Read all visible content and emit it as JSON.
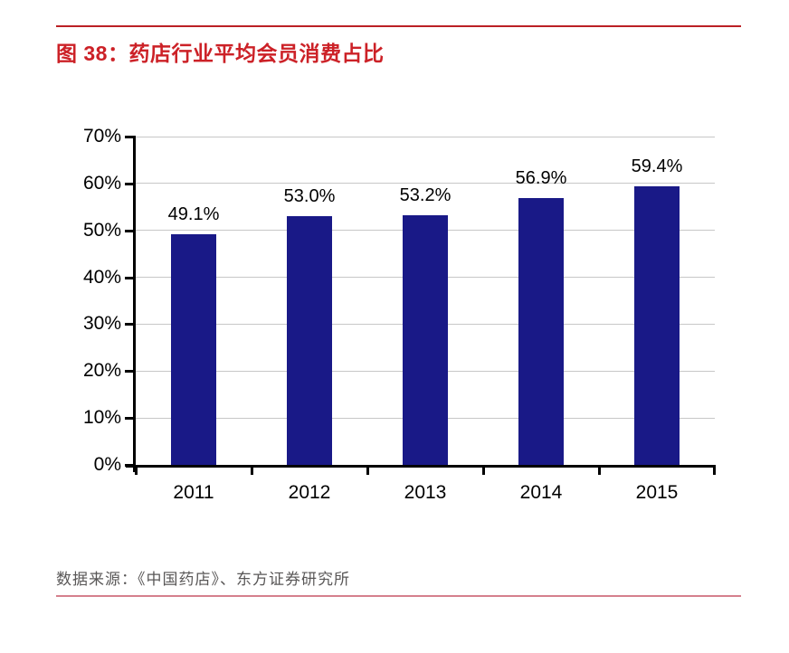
{
  "figure": {
    "number_and_title": "图 38：药店行业平均会员消费占比",
    "source_note": "数据来源：《中国药店》、东方证券研究所"
  },
  "colors": {
    "title_red": "#cc2127",
    "top_rule_red": "#bb2025",
    "bottom_rule_pink": "#d5808d",
    "bar_fill": "#191987",
    "gridline_gray": "#c7c7c7",
    "axis_black": "#000000",
    "label_black": "#000000",
    "source_gray": "#595757"
  },
  "chart_data": {
    "type": "bar",
    "title": "药店行业平均会员消费占比",
    "categories": [
      "2011",
      "2012",
      "2013",
      "2014",
      "2015"
    ],
    "values": [
      49.1,
      53.0,
      53.2,
      56.9,
      59.4
    ],
    "value_labels": [
      "49.1%",
      "53.0%",
      "53.2%",
      "56.9%",
      "59.4%"
    ],
    "xlabel": "",
    "ylabel": "",
    "ylim": [
      0,
      70
    ],
    "ytick_step": 10,
    "ytick_labels": [
      "0%",
      "10%",
      "20%",
      "30%",
      "40%",
      "50%",
      "60%",
      "70%"
    ],
    "grid": true,
    "legend": "none"
  }
}
